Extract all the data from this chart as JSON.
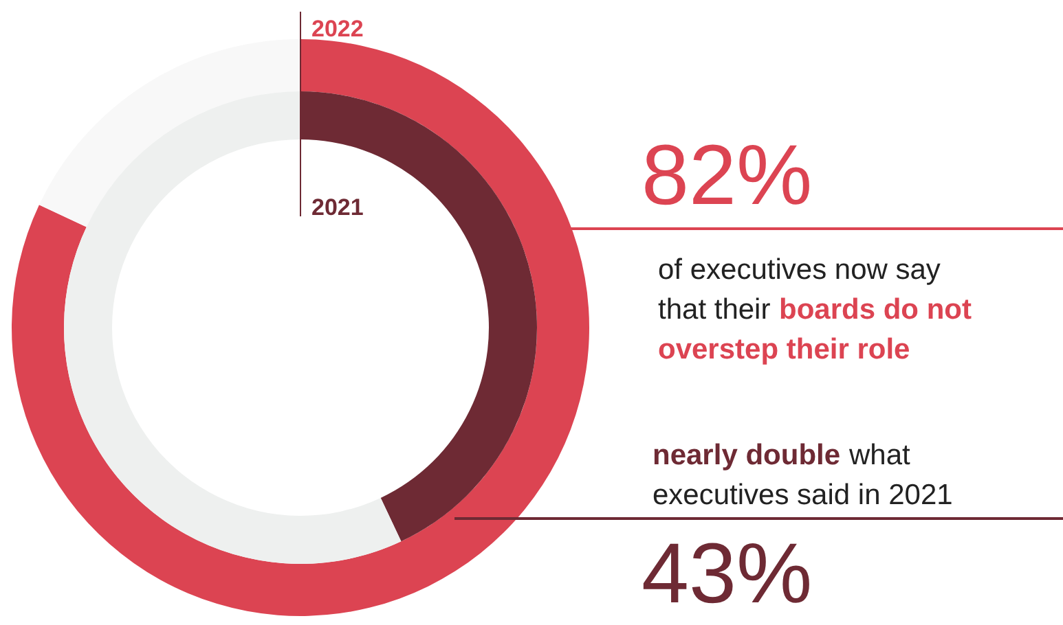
{
  "chart_data": {
    "type": "donut",
    "categories": [
      null,
      null
    ],
    "series": [
      {
        "name": "2022",
        "values": [
          82,
          18
        ],
        "colors": [
          "#dc4452",
          "#f8f8f8"
        ]
      },
      {
        "name": "2021",
        "values": [
          43,
          57
        ],
        "colors": [
          "#6e2a34",
          "#eef0ef"
        ]
      }
    ],
    "annotations": [
      "82%",
      "of executives now say",
      "that their",
      "boards do not",
      "overstep their role",
      "nearly double",
      " what",
      "executives said in 2021",
      "43%"
    ]
  }
}
